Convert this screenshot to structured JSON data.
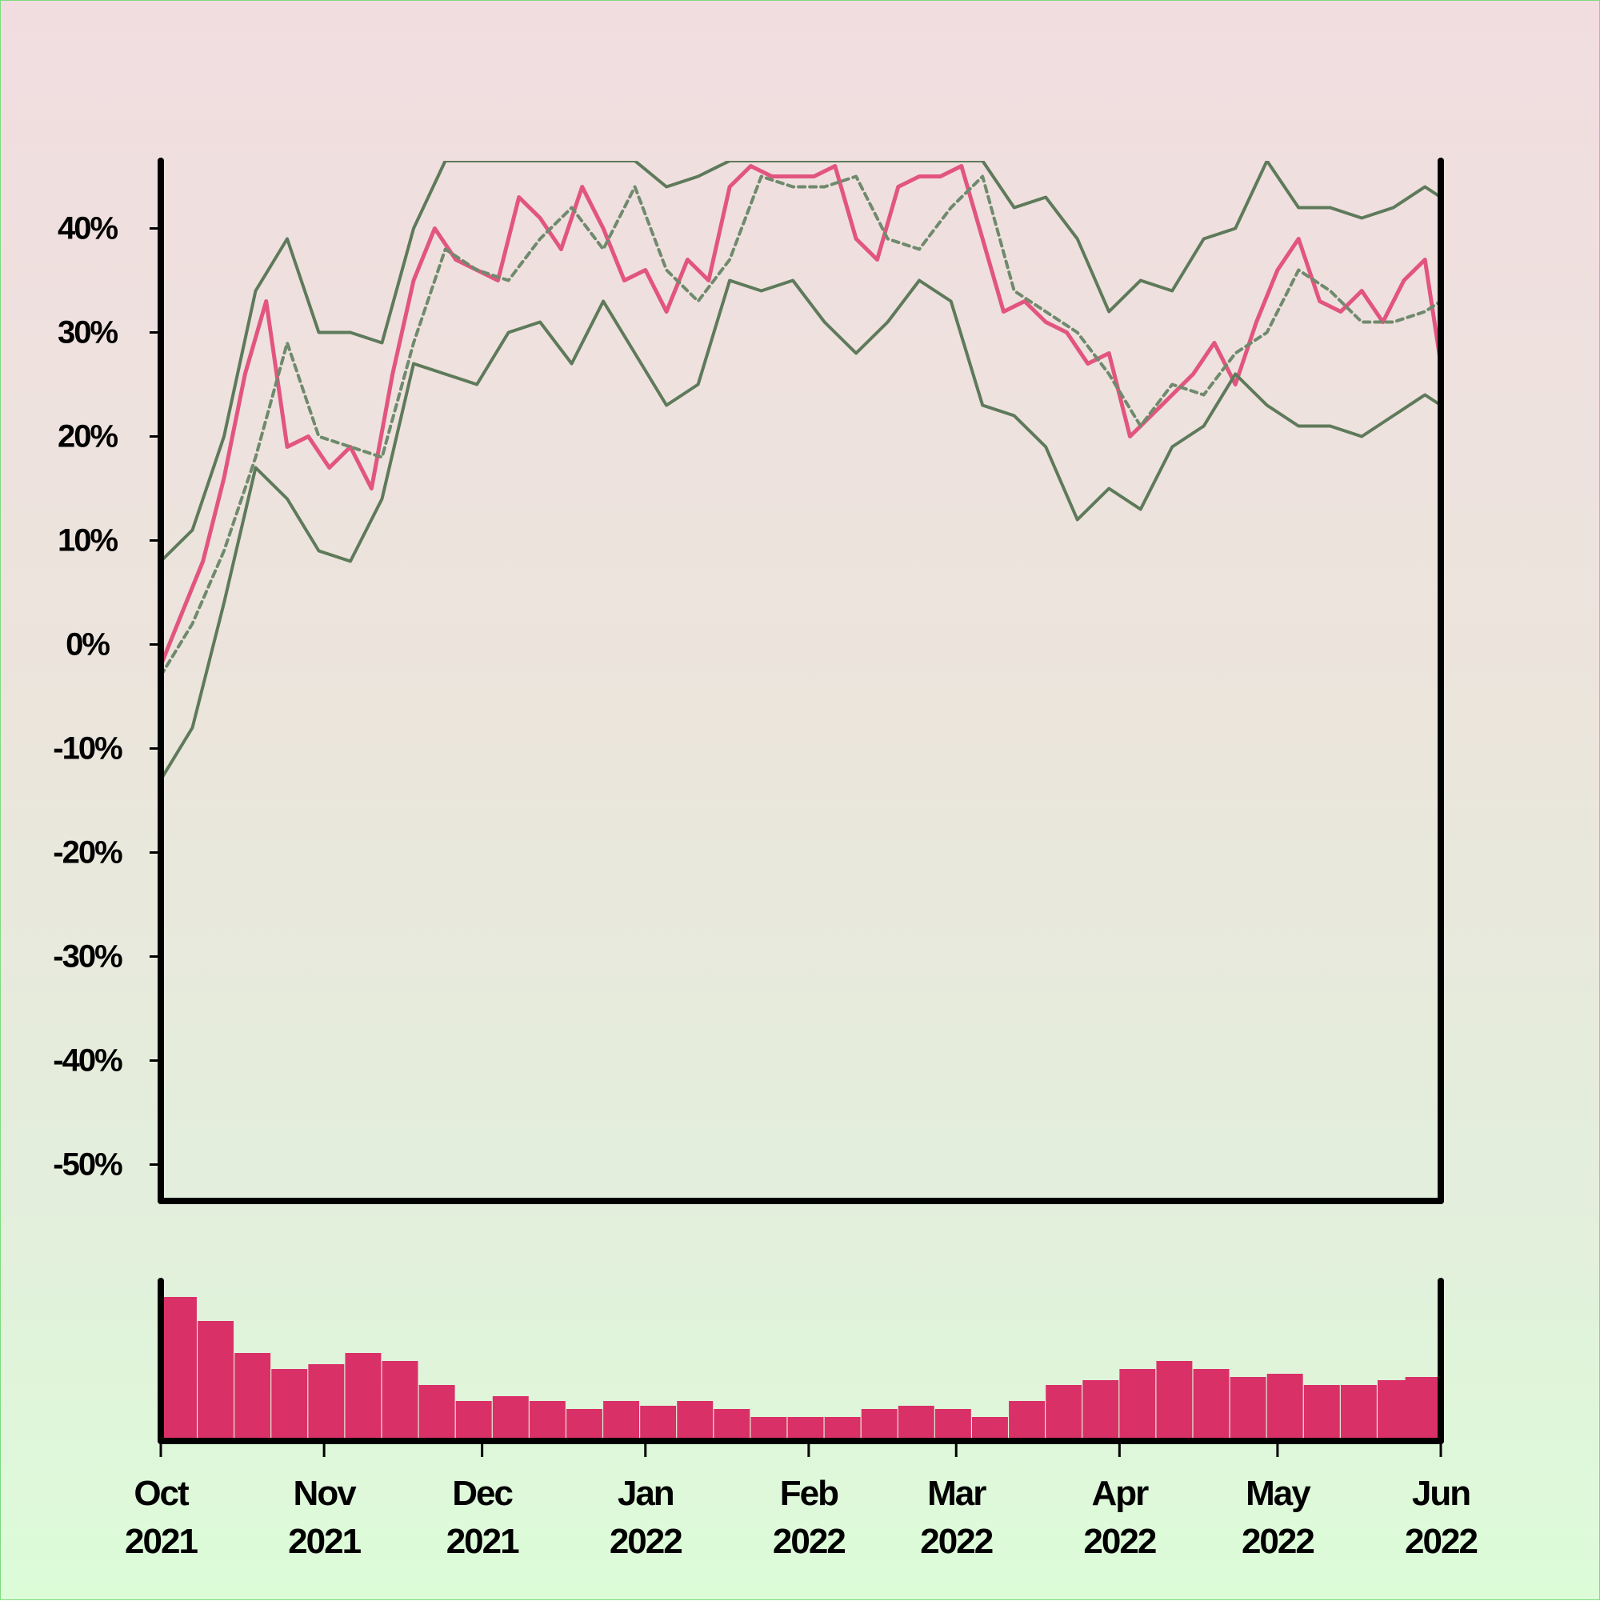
{
  "colors": {
    "price": "#e2557f",
    "ma": "#6f8a6c",
    "band": "#5e7a5a",
    "volume": "#da3068",
    "axis": "#000000"
  },
  "chart_data": {
    "type": "line",
    "y_axis": {
      "ylim": [
        -53.5,
        46.5
      ],
      "ticks": [
        40,
        30,
        20,
        10,
        0,
        -10,
        -20,
        -30,
        -40,
        -50
      ],
      "tick_labels": [
        "40%",
        "30%",
        "20%",
        "10%",
        "0%",
        "-10%",
        "-20%",
        "-30%",
        "-40%",
        "-50%"
      ]
    },
    "x_axis": {
      "range": [
        "2021-10-01",
        "2022-06-01"
      ],
      "ticks": [
        "2021-10-01",
        "2021-11-01",
        "2021-12-01",
        "2022-01-01",
        "2022-02-01",
        "2022-03-01",
        "2022-04-01",
        "2022-05-01",
        "2022-06-01"
      ],
      "tick_labels": [
        [
          "Oct",
          "2021"
        ],
        [
          "Nov",
          "2021"
        ],
        [
          "Dec",
          "2021"
        ],
        [
          "Jan",
          "2022"
        ],
        [
          "Feb",
          "2022"
        ],
        [
          "Mar",
          "2022"
        ],
        [
          "Apr",
          "2022"
        ],
        [
          "May",
          "2022"
        ],
        [
          "Jun",
          "2022"
        ]
      ]
    },
    "grid": false,
    "series": [
      {
        "role": "price",
        "style": "solid",
        "x": [
          "2021-10-01",
          "2021-10-05",
          "2021-10-09",
          "2021-10-13",
          "2021-10-17",
          "2021-10-21",
          "2021-10-25",
          "2021-10-29",
          "2021-11-02",
          "2021-11-06",
          "2021-11-10",
          "2021-11-14",
          "2021-11-18",
          "2021-11-22",
          "2021-11-26",
          "2021-11-30",
          "2021-12-04",
          "2021-12-08",
          "2021-12-12",
          "2021-12-16",
          "2021-12-20",
          "2021-12-24",
          "2021-12-28",
          "2022-01-01",
          "2022-01-05",
          "2022-01-09",
          "2022-01-13",
          "2022-01-17",
          "2022-01-21",
          "2022-01-25",
          "2022-01-29",
          "2022-02-02",
          "2022-02-06",
          "2022-02-10",
          "2022-02-14",
          "2022-02-18",
          "2022-02-22",
          "2022-02-26",
          "2022-03-02",
          "2022-03-06",
          "2022-03-10",
          "2022-03-14",
          "2022-03-18",
          "2022-03-22",
          "2022-03-26",
          "2022-03-30",
          "2022-04-03",
          "2022-04-07",
          "2022-04-11",
          "2022-04-15",
          "2022-04-19",
          "2022-04-23",
          "2022-04-27",
          "2022-05-01",
          "2022-05-05",
          "2022-05-09",
          "2022-05-13",
          "2022-05-17",
          "2022-05-21",
          "2022-05-25",
          "2022-05-29",
          "2022-06-01"
        ],
        "values": [
          -2,
          3,
          8,
          16,
          26,
          33,
          19,
          20,
          17,
          19,
          15,
          26,
          35,
          40,
          37,
          36,
          35,
          43,
          41,
          38,
          44,
          40,
          35,
          36,
          32,
          37,
          35,
          44,
          46,
          45,
          45,
          45,
          46,
          39,
          37,
          44,
          45,
          45,
          46,
          39,
          32,
          33,
          31,
          30,
          27,
          28,
          20,
          22,
          24,
          26,
          29,
          25,
          31,
          36,
          39,
          33,
          32,
          34,
          31,
          35,
          37,
          27
        ]
      },
      {
        "role": "moving-average",
        "style": "dashed",
        "x": [
          "2021-10-01",
          "2021-10-07",
          "2021-10-13",
          "2021-10-19",
          "2021-10-25",
          "2021-10-31",
          "2021-11-06",
          "2021-11-12",
          "2021-11-18",
          "2021-11-24",
          "2021-11-30",
          "2021-12-06",
          "2021-12-12",
          "2021-12-18",
          "2021-12-24",
          "2021-12-30",
          "2022-01-05",
          "2022-01-11",
          "2022-01-17",
          "2022-01-23",
          "2022-01-29",
          "2022-02-04",
          "2022-02-10",
          "2022-02-16",
          "2022-02-22",
          "2022-02-28",
          "2022-03-06",
          "2022-03-12",
          "2022-03-18",
          "2022-03-24",
          "2022-03-30",
          "2022-04-05",
          "2022-04-11",
          "2022-04-17",
          "2022-04-23",
          "2022-04-29",
          "2022-05-05",
          "2022-05-11",
          "2022-05-17",
          "2022-05-23",
          "2022-05-29",
          "2022-06-01"
        ],
        "values": [
          -3,
          2,
          9,
          18,
          29,
          20,
          19,
          18,
          29,
          38,
          36,
          35,
          39,
          42,
          38,
          44,
          36,
          33,
          37,
          45,
          44,
          44,
          45,
          39,
          38,
          42,
          45,
          34,
          32,
          30,
          26,
          21,
          25,
          24,
          28,
          30,
          36,
          34,
          31,
          31,
          32,
          33
        ]
      },
      {
        "role": "upper-band",
        "style": "solid",
        "x": [
          "2021-10-01",
          "2021-10-07",
          "2021-10-13",
          "2021-10-19",
          "2021-10-25",
          "2021-10-31",
          "2021-11-06",
          "2021-11-12",
          "2021-11-18",
          "2021-11-24",
          "2021-11-30",
          "2021-12-06",
          "2021-12-12",
          "2021-12-18",
          "2021-12-24",
          "2021-12-30",
          "2022-01-05",
          "2022-01-11",
          "2022-01-17",
          "2022-01-23",
          "2022-01-29",
          "2022-02-04",
          "2022-02-10",
          "2022-02-16",
          "2022-02-22",
          "2022-02-28",
          "2022-03-06",
          "2022-03-12",
          "2022-03-18",
          "2022-03-24",
          "2022-03-30",
          "2022-04-05",
          "2022-04-11",
          "2022-04-17",
          "2022-04-23",
          "2022-04-29",
          "2022-05-05",
          "2022-05-11",
          "2022-05-17",
          "2022-05-23",
          "2022-05-29",
          "2022-06-01"
        ],
        "values": [
          8,
          11,
          20,
          34,
          39,
          30,
          30,
          29,
          40,
          46.5,
          46.5,
          46.5,
          46.5,
          46.5,
          46.5,
          46.5,
          44,
          45,
          46.5,
          46.5,
          46.5,
          46.5,
          46.5,
          46.5,
          46.5,
          46.5,
          46.5,
          42,
          43,
          39,
          32,
          35,
          34,
          39,
          40,
          46.5,
          42,
          42,
          41,
          42,
          44,
          43
        ]
      },
      {
        "role": "lower-band",
        "style": "solid",
        "x": [
          "2021-10-01",
          "2021-10-07",
          "2021-10-13",
          "2021-10-19",
          "2021-10-25",
          "2021-10-31",
          "2021-11-06",
          "2021-11-12",
          "2021-11-18",
          "2021-11-24",
          "2021-11-30",
          "2021-12-06",
          "2021-12-12",
          "2021-12-18",
          "2021-12-24",
          "2021-12-30",
          "2022-01-05",
          "2022-01-11",
          "2022-01-17",
          "2022-01-23",
          "2022-01-29",
          "2022-02-04",
          "2022-02-10",
          "2022-02-16",
          "2022-02-22",
          "2022-02-28",
          "2022-03-06",
          "2022-03-12",
          "2022-03-18",
          "2022-03-24",
          "2022-03-30",
          "2022-04-05",
          "2022-04-11",
          "2022-04-17",
          "2022-04-23",
          "2022-04-29",
          "2022-05-05",
          "2022-05-11",
          "2022-05-17",
          "2022-05-23",
          "2022-05-29",
          "2022-06-01"
        ],
        "values": [
          -13,
          -8,
          4,
          17,
          14,
          9,
          8,
          14,
          27,
          26,
          25,
          30,
          31,
          27,
          33,
          28,
          23,
          25,
          35,
          34,
          35,
          31,
          28,
          31,
          35,
          33,
          23,
          22,
          19,
          12,
          15,
          13,
          19,
          21,
          26,
          23,
          21,
          21,
          20,
          22,
          24,
          23
        ]
      }
    ],
    "volume": {
      "x": [
        "2021-10-01",
        "2021-10-08",
        "2021-10-15",
        "2021-10-22",
        "2021-10-29",
        "2021-11-05",
        "2021-11-12",
        "2021-11-19",
        "2021-11-26",
        "2021-12-03",
        "2021-12-10",
        "2021-12-17",
        "2021-12-24",
        "2021-12-31",
        "2022-01-07",
        "2022-01-14",
        "2022-01-21",
        "2022-01-28",
        "2022-02-04",
        "2022-02-11",
        "2022-02-18",
        "2022-02-25",
        "2022-03-04",
        "2022-03-11",
        "2022-03-18",
        "2022-03-25",
        "2022-04-01",
        "2022-04-08",
        "2022-04-15",
        "2022-04-22",
        "2022-04-29",
        "2022-05-06",
        "2022-05-13",
        "2022-05-20",
        "2022-05-27",
        "2022-06-01"
      ],
      "values": [
        0.9,
        0.75,
        0.55,
        0.45,
        0.48,
        0.55,
        0.5,
        0.35,
        0.25,
        0.28,
        0.25,
        0.2,
        0.25,
        0.22,
        0.25,
        0.2,
        0.15,
        0.15,
        0.15,
        0.2,
        0.22,
        0.2,
        0.15,
        0.25,
        0.35,
        0.38,
        0.45,
        0.5,
        0.45,
        0.4,
        0.42,
        0.35,
        0.35,
        0.38,
        0.35,
        0.4
      ]
    }
  }
}
